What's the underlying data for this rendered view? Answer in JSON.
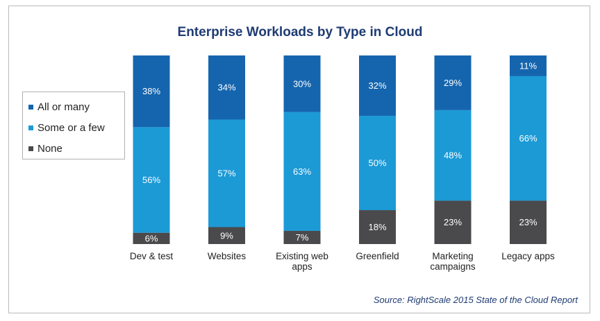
{
  "chart_data": {
    "type": "bar",
    "stacked": true,
    "title": "Enterprise Workloads by Type in Cloud",
    "categories": [
      [
        "Dev & test"
      ],
      [
        "Websites"
      ],
      [
        "Existing web",
        "apps"
      ],
      [
        "Greenfield"
      ],
      [
        "Marketing",
        "campaigns"
      ],
      [
        "Legacy apps"
      ]
    ],
    "series": [
      {
        "name": "None",
        "color": "#4a4a4c",
        "values": [
          6,
          9,
          7,
          18,
          23,
          23
        ]
      },
      {
        "name": "Some or a few",
        "color": "#1c9ad6",
        "values": [
          56,
          57,
          63,
          50,
          48,
          66
        ]
      },
      {
        "name": "All or many",
        "color": "#1565ae",
        "values": [
          38,
          34,
          30,
          32,
          29,
          11
        ]
      }
    ],
    "legend_order": [
      "All or many",
      "Some or a few",
      "None"
    ],
    "ylim": [
      0,
      100
    ],
    "value_suffix": "%",
    "legend_position": "left",
    "grid": false,
    "xlabel": "",
    "ylabel": ""
  },
  "source": "Source: RightScale 2015 State of the Cloud Report"
}
